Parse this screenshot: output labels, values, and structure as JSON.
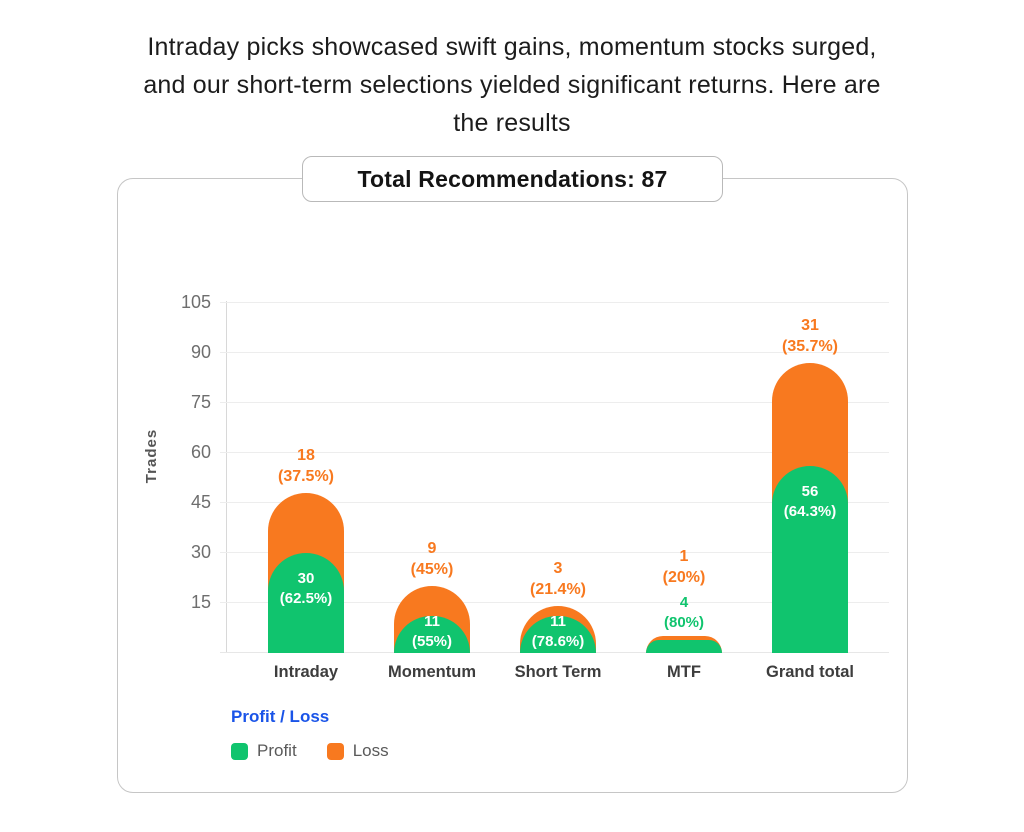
{
  "heading": "Intraday picks showcased swift gains, momentum stocks surged, and our short-term selections yielded significant returns. Here are the results",
  "total_box_label": "Total Recommendations: 87",
  "chart_data": {
    "type": "bar",
    "stacked": true,
    "title": "Total Recommendations: 87",
    "xlabel": "",
    "ylabel": "Trades",
    "ylim": [
      0,
      106.8
    ],
    "yticks": [
      15,
      30,
      45,
      60,
      75,
      90,
      105
    ],
    "grid": true,
    "legend_position": "bottom-left",
    "categories": [
      "Intraday",
      "Momentum",
      "Short Term",
      "MTF",
      "Grand total"
    ],
    "series": [
      {
        "name": "Profit",
        "color": "#10C46E",
        "values": [
          30,
          11,
          11,
          4,
          56
        ],
        "pct_labels": [
          "62.5%",
          "55%",
          "78.6%",
          "80%",
          "64.3%"
        ]
      },
      {
        "name": "Loss",
        "color": "#F8791F",
        "values": [
          18,
          9,
          3,
          1,
          31
        ],
        "pct_labels": [
          "37.5%",
          "45%",
          "21.4%",
          "20%",
          "35.7%"
        ]
      }
    ],
    "totals": [
      48,
      20,
      14,
      5,
      87
    ]
  },
  "legend": {
    "title": "Profit / Loss",
    "title_color": "#1A54E8",
    "items": [
      {
        "label": "Profit",
        "color": "#10C46E"
      },
      {
        "label": "Loss",
        "color": "#F8791F"
      }
    ]
  }
}
